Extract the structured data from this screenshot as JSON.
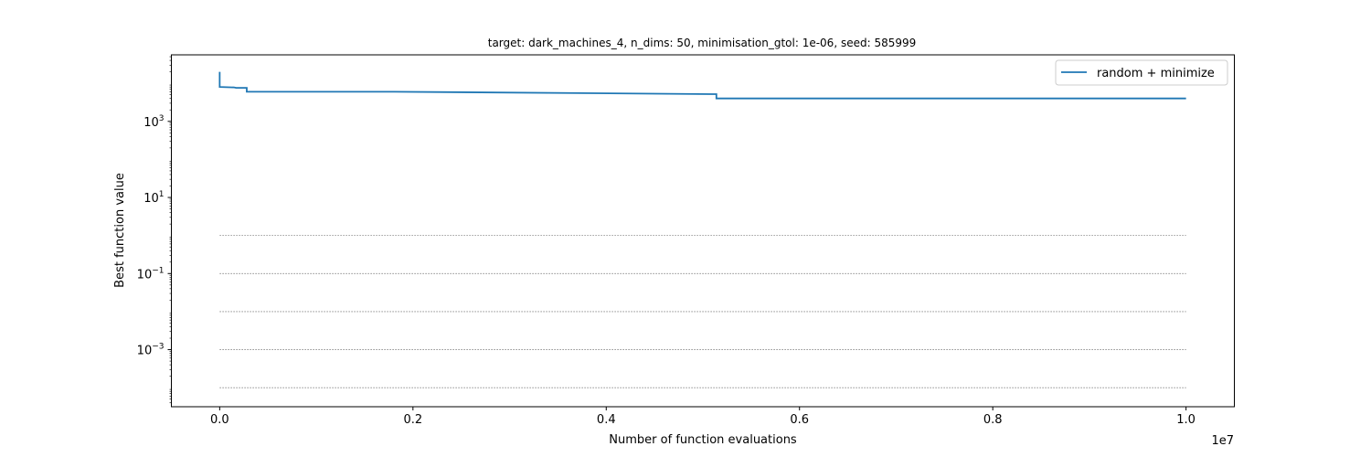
{
  "chart_data": {
    "type": "line",
    "title": "target: dark_machines_4, n_dims: 50, minimisation_gtol: 1e-06, seed: 585999",
    "xlabel": "Number of function evaluations",
    "ylabel": "Best function value",
    "x_offset_label": "1e7",
    "x_scale": "linear",
    "y_scale": "log",
    "xlim": [
      -0.05,
      1.05
    ],
    "ylim": [
      3.16e-05,
      56000
    ],
    "x_ticks": [
      {
        "value": 0.0,
        "label": "0.0"
      },
      {
        "value": 0.2,
        "label": "0.2"
      },
      {
        "value": 0.4,
        "label": "0.4"
      },
      {
        "value": 0.6,
        "label": "0.6"
      },
      {
        "value": 0.8,
        "label": "0.8"
      },
      {
        "value": 1.0,
        "label": "1.0"
      }
    ],
    "y_ticks": [
      {
        "value": 0.001,
        "base": "10",
        "exp": "−3"
      },
      {
        "value": 0.1,
        "base": "10",
        "exp": "−1"
      },
      {
        "value": 10,
        "base": "10",
        "exp": "1"
      },
      {
        "value": 1000,
        "base": "10",
        "exp": "3"
      }
    ],
    "reference_lines": [
      {
        "y": 1,
        "x_range": [
          0,
          1.0
        ],
        "style": "dotted",
        "color": "#808080"
      },
      {
        "y": 0.1,
        "x_range": [
          0,
          1.0
        ],
        "style": "dotted",
        "color": "#808080"
      },
      {
        "y": 0.01,
        "x_range": [
          0,
          1.0
        ],
        "style": "dotted",
        "color": "#808080"
      },
      {
        "y": 0.001,
        "x_range": [
          0,
          1.0
        ],
        "style": "dotted",
        "color": "#808080"
      },
      {
        "y": 0.0001,
        "x_range": [
          0,
          1.0
        ],
        "style": "dotted",
        "color": "#808080"
      }
    ],
    "series": [
      {
        "name": "random + minimize",
        "color": "#1f77b4",
        "step": true,
        "points": [
          [
            0.0,
            20000
          ],
          [
            0.0,
            8000
          ],
          [
            0.015,
            7800
          ],
          [
            0.017,
            7600
          ],
          [
            0.028,
            7600
          ],
          [
            0.028,
            6000
          ],
          [
            0.18,
            6000
          ],
          [
            0.51,
            5200
          ],
          [
            0.514,
            5200
          ],
          [
            0.514,
            4000
          ],
          [
            1.0,
            4000
          ]
        ]
      }
    ],
    "legend": {
      "position": "top-right"
    },
    "grid": false
  }
}
